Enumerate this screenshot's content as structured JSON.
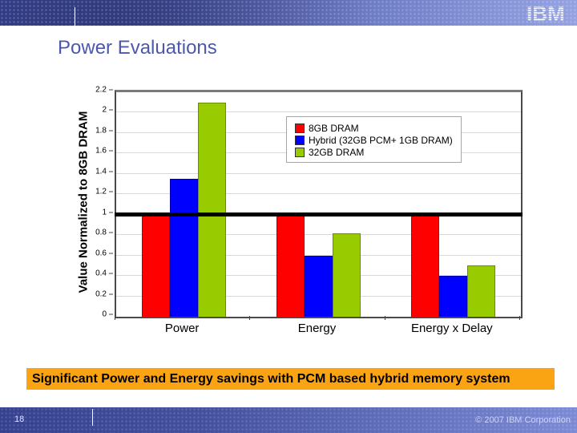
{
  "slide": {
    "title": "Power Evaluations",
    "page_number": "18",
    "footer_copyright": "© 2007 IBM Corporation",
    "banner_text": "Significant Power and Energy savings with PCM based hybrid memory system",
    "logo": "IBM",
    "colors": {
      "title_blue": "#4c58ad",
      "banner_orange": "#fba413",
      "header_blue_left": "#3b4795",
      "header_blue_right": "#95a2e2",
      "footer_text": "#ccd4f4"
    }
  },
  "chart_data": {
    "type": "bar",
    "title": "",
    "xlabel": "",
    "ylabel": "Value Normalized to 8GB DRAM",
    "ylim": [
      0,
      2.2
    ],
    "ytick_labels": [
      "0",
      "0.2",
      "0.4",
      "0.6",
      "0.8",
      "1",
      "1.2",
      "1.4",
      "1.6",
      "1.8",
      "2",
      "2.2"
    ],
    "grid": true,
    "gridline_color": "#d9d9d9",
    "reference_line": 1,
    "legend_position": "inside-upper-right",
    "categories": [
      "Power",
      "Energy",
      "Energy x Delay"
    ],
    "series": [
      {
        "name": "8GB DRAM",
        "color": "#ff0000",
        "values": [
          1.0,
          1.0,
          1.0
        ]
      },
      {
        "name": "Hybrid (32GB PCM+ 1GB DRAM)",
        "color": "#0000ff",
        "values": [
          1.35,
          0.6,
          0.4
        ]
      },
      {
        "name": "32GB DRAM",
        "color": "#99cc00",
        "values": [
          2.1,
          0.82,
          0.5
        ]
      }
    ]
  }
}
